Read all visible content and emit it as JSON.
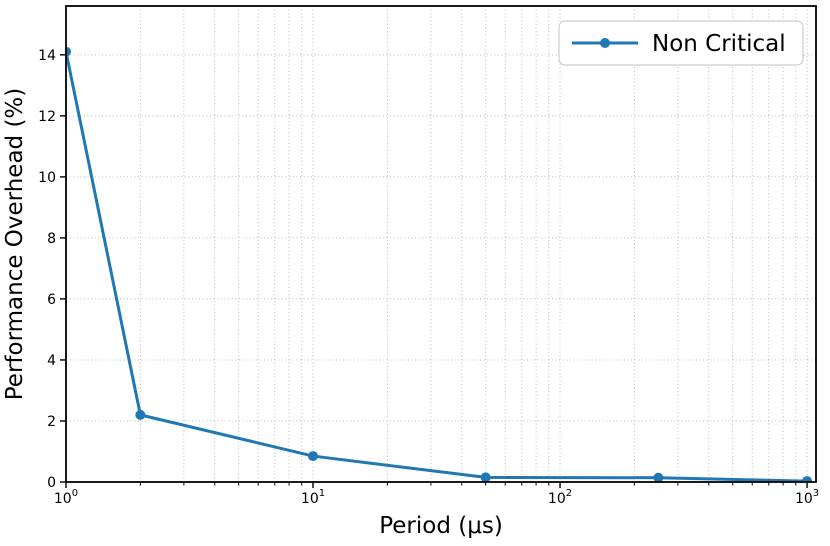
{
  "chart_data": {
    "type": "line",
    "title": "",
    "xlabel": "Period (μs)",
    "ylabel": "Performance Overhead (%)",
    "x_scale": "log",
    "y_scale": "linear",
    "xlim": [
      1,
      1087
    ],
    "ylim": [
      0,
      15.6
    ],
    "x_ticks": [
      1,
      10,
      100,
      1000
    ],
    "x_tick_labels": [
      {
        "base": "10",
        "exp": "0"
      },
      {
        "base": "10",
        "exp": "1"
      },
      {
        "base": "10",
        "exp": "2"
      },
      {
        "base": "10",
        "exp": "3"
      }
    ],
    "y_ticks": [
      0,
      2,
      4,
      6,
      8,
      10,
      12,
      14
    ],
    "grid": {
      "style": "dotted",
      "vertical": "major+minor",
      "horizontal": "major"
    },
    "legend": {
      "position": "upper-right",
      "entries": [
        "Non Critical"
      ]
    },
    "series": [
      {
        "name": "Non Critical",
        "color": "#1f77b4",
        "marker": "circle",
        "x": [
          1,
          2,
          10,
          50,
          250,
          1000
        ],
        "y": [
          14.1,
          2.2,
          0.85,
          0.15,
          0.14,
          0.03
        ]
      }
    ]
  },
  "colors": {
    "line": "#1f77b4",
    "grid": "#b8b8b8",
    "spine": "#000000",
    "legend_border": "#cccccc",
    "background": "#ffffff"
  },
  "legend": {
    "label": "Non Critical"
  }
}
